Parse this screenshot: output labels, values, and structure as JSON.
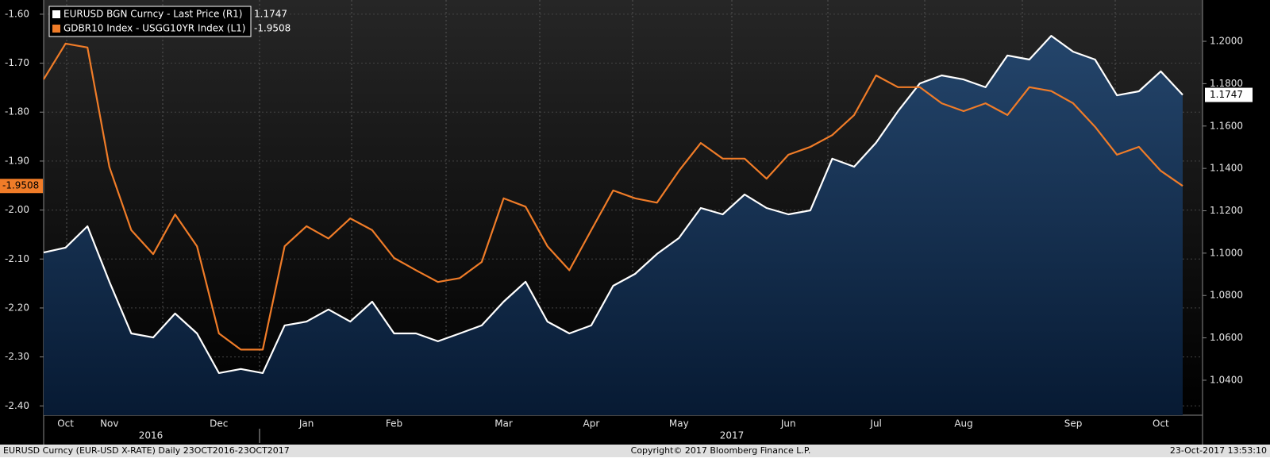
{
  "chart_data": {
    "type": "line",
    "categories": [
      null,
      "Oct",
      null,
      "Nov",
      null,
      null,
      null,
      null,
      "Dec",
      null,
      null,
      null,
      "Jan",
      null,
      null,
      null,
      "Feb",
      null,
      null,
      null,
      null,
      "Mar",
      null,
      null,
      null,
      "Apr",
      null,
      null,
      null,
      "May",
      null,
      null,
      null,
      null,
      "Jun",
      null,
      null,
      null,
      "Jul",
      null,
      null,
      null,
      "Aug",
      null,
      null,
      null,
      null,
      "Sep",
      null,
      null,
      null,
      "Oct",
      null
    ],
    "annotations": [
      "2016",
      "2017"
    ],
    "series": [
      {
        "name": "EURUSD BGN Curncy - Last Price (R1)",
        "color": "#ffffff",
        "axis": "y2",
        "area": true,
        "values": [
          1.1003,
          1.1026,
          1.1127,
          1.0865,
          1.0621,
          1.0602,
          1.0715,
          1.0621,
          1.0434,
          1.0453,
          1.0434,
          1.0659,
          1.0677,
          1.0734,
          1.0677,
          1.0771,
          1.0621,
          1.0621,
          1.0584,
          1.0621,
          1.0659,
          1.0771,
          1.0865,
          1.0677,
          1.0621,
          1.0659,
          1.0846,
          1.0902,
          1.0996,
          1.1071,
          1.1213,
          1.1183,
          1.1277,
          1.1213,
          1.1183,
          1.1202,
          1.1446,
          1.1408,
          1.1521,
          1.167,
          1.1801,
          1.1839,
          1.182,
          1.1783,
          1.1933,
          1.1914,
          1.2026,
          1.1951,
          1.1914,
          1.1745,
          1.1764,
          1.1858,
          1.1747
        ]
      },
      {
        "name": "GDBR10 Index - USGG10YR Index (L1)",
        "color": "#f07c28",
        "axis": "y",
        "values": [
          -1.733,
          -1.66,
          -1.668,
          -1.912,
          -2.041,
          -2.09,
          -2.009,
          -2.074,
          -2.252,
          -2.285,
          -2.285,
          -2.074,
          -2.033,
          -2.058,
          -2.017,
          -2.041,
          -2.098,
          -2.123,
          -2.147,
          -2.139,
          -2.106,
          -1.976,
          -1.993,
          -2.074,
          -2.123,
          -2.041,
          -1.96,
          -1.976,
          -1.985,
          -1.92,
          -1.863,
          -1.895,
          -1.895,
          -1.936,
          -1.887,
          -1.871,
          -1.847,
          -1.806,
          -1.725,
          -1.749,
          -1.749,
          -1.782,
          -1.798,
          -1.782,
          -1.806,
          -1.749,
          -1.757,
          -1.782,
          -1.83,
          -1.887,
          -1.871,
          -1.92,
          -1.9508
        ]
      }
    ],
    "ylim": [
      -2.419,
      -1.571
    ],
    "yticks": [
      {
        "value": -1.6,
        "label": "-1.60"
      },
      {
        "value": -1.7,
        "label": "-1.70"
      },
      {
        "value": -1.8,
        "label": "-1.80"
      },
      {
        "value": -1.9,
        "label": "-1.90"
      },
      {
        "value": -2.0,
        "label": "-2.00"
      },
      {
        "value": -2.1,
        "label": "-2.10"
      },
      {
        "value": -2.2,
        "label": "-2.20"
      },
      {
        "value": -2.3,
        "label": "-2.30"
      },
      {
        "value": -2.4,
        "label": "-2.40"
      }
    ],
    "y2lim": [
      1.0235,
      1.2195
    ],
    "y2ticks": [
      {
        "value": 1.2,
        "label": "1.2000"
      },
      {
        "value": 1.18,
        "label": "1.1800"
      },
      {
        "value": 1.16,
        "label": "1.1600"
      },
      {
        "value": 1.14,
        "label": "1.1400"
      },
      {
        "value": 1.12,
        "label": "1.1200"
      },
      {
        "value": 1.1,
        "label": "1.1000"
      },
      {
        "value": 1.08,
        "label": "1.0800"
      },
      {
        "value": 1.06,
        "label": "1.0600"
      },
      {
        "value": 1.04,
        "label": "1.0400"
      }
    ],
    "grid": true,
    "footer": {
      "left": "EURUSD Curncy (EUR-USD X-RATE)  Daily 23OCT2016-23OCT2017",
      "center": "Copyright© 2017 Bloomberg Finance L.P.",
      "right": "23-Oct-2017 13:53:10"
    }
  }
}
